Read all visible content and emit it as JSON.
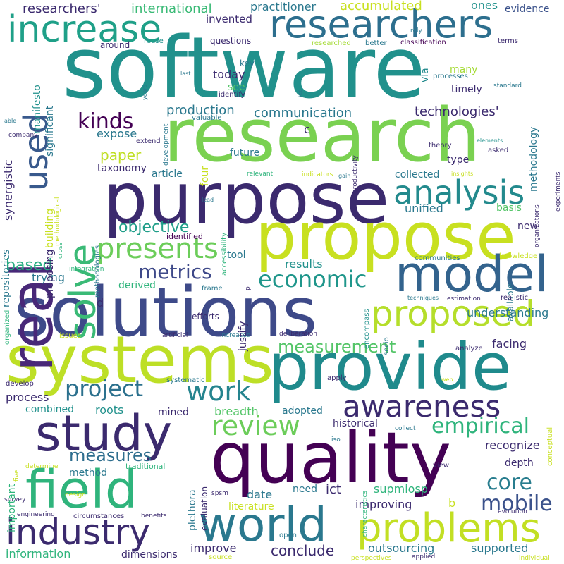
{
  "words": [
    {
      "text": "software",
      "color": "#21918c"
    },
    {
      "text": "research",
      "color": "#7ad151"
    },
    {
      "text": "purpose",
      "color": "#3b2a6e"
    },
    {
      "text": "propose",
      "color": "#c8e020"
    },
    {
      "text": "solutions",
      "color": "#3e4a89"
    },
    {
      "text": "systems",
      "color": "#bddf26"
    },
    {
      "text": "provide",
      "color": "#1f8a8c"
    },
    {
      "text": "quality",
      "color": "#440154"
    },
    {
      "text": "model",
      "color": "#33638d"
    },
    {
      "text": "study",
      "color": "#3b2a6e"
    },
    {
      "text": "field",
      "color": "#2fb47c"
    },
    {
      "text": "world",
      "color": "#2a788e"
    },
    {
      "text": "industry",
      "color": "#3b2a6e"
    },
    {
      "text": "problems",
      "color": "#c2df23"
    },
    {
      "text": "increase",
      "color": "#1fa088"
    },
    {
      "text": "researchers",
      "color": "#2d6f8e"
    },
    {
      "text": "real",
      "color": "#482878"
    },
    {
      "text": "solve",
      "color": "#3aba76"
    },
    {
      "text": "used",
      "color": "#38598c"
    },
    {
      "text": "analysis",
      "color": "#238a8d"
    },
    {
      "text": "presents",
      "color": "#6ccd5a"
    },
    {
      "text": "proposed",
      "color": "#b5de2b"
    },
    {
      "text": "awareness",
      "color": "#3b2a6e"
    },
    {
      "text": "review",
      "color": "#6ccd5a"
    },
    {
      "text": "work",
      "color": "#25848e"
    },
    {
      "text": "project",
      "color": "#2c718e"
    },
    {
      "text": "empirical",
      "color": "#2fb47c"
    },
    {
      "text": "core",
      "color": "#287d8e"
    },
    {
      "text": "mobile",
      "color": "#3b528b"
    },
    {
      "text": "economic",
      "color": "#1f968b"
    },
    {
      "text": "metrics",
      "color": "#3e4989"
    },
    {
      "text": "measures",
      "color": "#2e6e8e"
    },
    {
      "text": "kinds",
      "color": "#440154"
    },
    {
      "text": "measurement",
      "color": "#54c568"
    },
    {
      "text": "objective",
      "color": "#1f9e89"
    },
    {
      "text": "based",
      "color": "#27ad81"
    },
    {
      "text": "paper",
      "color": "#c0df25"
    },
    {
      "text": "technologies'",
      "color": "#3b2a6e"
    },
    {
      "text": "production",
      "color": "#2a788e"
    },
    {
      "text": "communication",
      "color": "#2a788e"
    },
    {
      "text": "international",
      "color": "#3aba76"
    },
    {
      "text": "accumulated",
      "color": "#c8e020"
    },
    {
      "text": "researchers'",
      "color": "#3b2a6e"
    },
    {
      "text": "practitioner",
      "color": "#2a788e"
    },
    {
      "text": "evidence",
      "color": "#3b528b"
    },
    {
      "text": "ones",
      "color": "#21918c"
    },
    {
      "text": "invented",
      "color": "#3b2a6e"
    },
    {
      "text": "questions",
      "color": "#3b2a6e"
    },
    {
      "text": "key",
      "color": "#2a788e"
    },
    {
      "text": "around",
      "color": "#3b2a6e"
    },
    {
      "text": "reuse",
      "color": "#21918c"
    },
    {
      "text": "researched",
      "color": "#a5db36"
    },
    {
      "text": "better",
      "color": "#2a788e"
    },
    {
      "text": "classification",
      "color": "#440154"
    },
    {
      "text": "terms",
      "color": "#3b2a6e"
    },
    {
      "text": "rely",
      "color": "#2a788e"
    },
    {
      "text": "via",
      "color": "#238a8d"
    },
    {
      "text": "many",
      "color": "#a5db36"
    },
    {
      "text": "processes",
      "color": "#2a788e"
    },
    {
      "text": "standard",
      "color": "#2a788e"
    },
    {
      "text": "timely",
      "color": "#3b2a6e"
    },
    {
      "text": "methodology",
      "color": "#2a788e"
    },
    {
      "text": "see",
      "color": "#54c568"
    },
    {
      "text": "identify",
      "color": "#3b2a6e"
    },
    {
      "text": "today",
      "color": "#3b2a6e"
    },
    {
      "text": "c",
      "color": "#3b2a6e"
    },
    {
      "text": "expose",
      "color": "#2a788e"
    },
    {
      "text": "extend",
      "color": "#3b2a6e"
    },
    {
      "text": "future",
      "color": "#2a788e"
    },
    {
      "text": "four",
      "color": "#c8e020"
    },
    {
      "text": "taxonomy",
      "color": "#3b2a6e"
    },
    {
      "text": "article",
      "color": "#2a788e"
    },
    {
      "text": "collected",
      "color": "#2a788e"
    },
    {
      "text": "type",
      "color": "#3b2a6e"
    },
    {
      "text": "unified",
      "color": "#2a788e"
    },
    {
      "text": "basis",
      "color": "#54c568"
    },
    {
      "text": "theory",
      "color": "#3b2a6e"
    },
    {
      "text": "asked",
      "color": "#3b2a6e"
    },
    {
      "text": "elements",
      "color": "#21918c"
    },
    {
      "text": "insights",
      "color": "#c8e020"
    },
    {
      "text": "indicators",
      "color": "#c8e020"
    },
    {
      "text": "gain",
      "color": "#2a788e"
    },
    {
      "text": "relevant",
      "color": "#2fb47c"
    },
    {
      "text": "valuable",
      "color": "#2a788e"
    },
    {
      "text": "lead",
      "color": "#2a788e"
    },
    {
      "text": "company",
      "color": "#3b2a6e"
    },
    {
      "text": "able",
      "color": "#2a788e"
    },
    {
      "text": "last",
      "color": "#2a788e"
    },
    {
      "text": "years",
      "color": "#2a788e"
    },
    {
      "text": "iec",
      "color": "#2a788e"
    },
    {
      "text": "new",
      "color": "#3b2a6e"
    },
    {
      "text": "identified",
      "color": "#440154"
    },
    {
      "text": "tool",
      "color": "#2a788e"
    },
    {
      "text": "results",
      "color": "#21918c"
    },
    {
      "text": "trying",
      "color": "#2a788e"
    },
    {
      "text": "derived",
      "color": "#2fb47c"
    },
    {
      "text": "d",
      "color": "#3b2a6e"
    },
    {
      "text": "integration",
      "color": "#2fb47c"
    },
    {
      "text": "communities",
      "color": "#2a788e"
    },
    {
      "text": "knowledge",
      "color": "#c8e020"
    },
    {
      "text": "available",
      "color": "#2a788e"
    },
    {
      "text": "frame",
      "color": "#2a788e"
    },
    {
      "text": "efforts",
      "color": "#3b2a6e"
    },
    {
      "text": "artificial",
      "color": "#3b2a6e"
    },
    {
      "text": "increased",
      "color": "#2a788e"
    },
    {
      "text": "deliberation",
      "color": "#3b2a6e"
    },
    {
      "text": "techniques",
      "color": "#2a788e"
    },
    {
      "text": "estimation",
      "color": "#3b2a6e"
    },
    {
      "text": "realistic",
      "color": "#3b2a6e"
    },
    {
      "text": "encompass",
      "color": "#21918c"
    },
    {
      "text": "understanding",
      "color": "#2a788e"
    },
    {
      "text": "facing",
      "color": "#3b2a6e"
    },
    {
      "text": "analyze",
      "color": "#3b2a6e"
    },
    {
      "text": "issues",
      "color": "#c8e020"
    },
    {
      "text": "develop",
      "color": "#3b2a6e"
    },
    {
      "text": "systematic",
      "color": "#2a788e"
    },
    {
      "text": "apply",
      "color": "#3b2a6e"
    },
    {
      "text": "web",
      "color": "#c8e020"
    },
    {
      "text": "combined",
      "color": "#21918c"
    },
    {
      "text": "roots",
      "color": "#21918c"
    },
    {
      "text": "mined",
      "color": "#3b2a6e"
    },
    {
      "text": "breadth",
      "color": "#54c568"
    },
    {
      "text": "adopted",
      "color": "#2a788e"
    },
    {
      "text": "process",
      "color": "#3b2a6e"
    },
    {
      "text": "historical",
      "color": "#3b2a6e"
    },
    {
      "text": "plethora",
      "color": "#2a788e"
    },
    {
      "text": "recognize",
      "color": "#3b2a6e"
    },
    {
      "text": "depth",
      "color": "#3b2a6e"
    },
    {
      "text": "collect",
      "color": "#2a788e"
    },
    {
      "text": "method",
      "color": "#2a788e"
    },
    {
      "text": "traditional",
      "color": "#2fb47c"
    },
    {
      "text": "evaluation",
      "color": "#3b2a6e"
    },
    {
      "text": "date",
      "color": "#2a788e"
    },
    {
      "text": "ict",
      "color": "#3b2a6e"
    },
    {
      "text": "need",
      "color": "#2a788e"
    },
    {
      "text": "supmiosp",
      "color": "#2fb47c"
    },
    {
      "text": "b",
      "color": "#c8e020"
    },
    {
      "text": "improving",
      "color": "#3b2a6e"
    },
    {
      "text": "literature",
      "color": "#c8e020"
    },
    {
      "text": "determine",
      "color": "#c8e020"
    },
    {
      "text": "survey",
      "color": "#3b2a6e"
    },
    {
      "text": "engineering",
      "color": "#3b2a6e"
    },
    {
      "text": "circumstances",
      "color": "#3b2a6e"
    },
    {
      "text": "benefits",
      "color": "#3b2a6e"
    },
    {
      "text": "design",
      "color": "#c8e020"
    },
    {
      "text": "information",
      "color": "#2fb47c"
    },
    {
      "text": "dimensions",
      "color": "#3b2a6e"
    },
    {
      "text": "improve",
      "color": "#3b2a6e"
    },
    {
      "text": "conclude",
      "color": "#3b2a6e"
    },
    {
      "text": "outsourcing",
      "color": "#2a788e"
    },
    {
      "text": "supported",
      "color": "#2a788e"
    },
    {
      "text": "source",
      "color": "#c8e020"
    },
    {
      "text": "open",
      "color": "#2a788e"
    },
    {
      "text": "perspectives",
      "color": "#c8e020"
    },
    {
      "text": "applied",
      "color": "#3b2a6e"
    },
    {
      "text": "individual",
      "color": "#c8e020"
    },
    {
      "text": "evolution",
      "color": "#3b2a6e"
    },
    {
      "text": "view",
      "color": "#3b2a6e"
    },
    {
      "text": "spsm",
      "color": "#3b2a6e"
    },
    {
      "text": "iso",
      "color": "#2a788e"
    },
    {
      "text": "important",
      "color": "#2fb47c"
    },
    {
      "text": "five",
      "color": "#c8e020"
    },
    {
      "text": "synergistic",
      "color": "#3b2a6e"
    },
    {
      "text": "manifesto",
      "color": "#21918c"
    },
    {
      "text": "significant",
      "color": "#2a788e"
    },
    {
      "text": "development",
      "color": "#2a788e"
    },
    {
      "text": "methodological",
      "color": "#c8e020"
    },
    {
      "text": "building",
      "color": "#c8e020"
    },
    {
      "text": "proposing",
      "color": "#3b2a6e"
    },
    {
      "text": "repositories",
      "color": "#2a788e"
    },
    {
      "text": "cross",
      "color": "#2fb47c"
    },
    {
      "text": "methodologies",
      "color": "#2a788e"
    },
    {
      "text": "organized",
      "color": "#2fb47c"
    },
    {
      "text": "productivity",
      "color": "#3b2a6e"
    },
    {
      "text": "accessibility",
      "color": "#2fb47c"
    },
    {
      "text": "justify",
      "color": "#3b2a6e"
    },
    {
      "text": "p",
      "color": "#3b2a6e"
    },
    {
      "text": "socio",
      "color": "#2a788e"
    },
    {
      "text": "conceptual",
      "color": "#c8e020"
    },
    {
      "text": "characteristics",
      "color": "#2fb47c"
    },
    {
      "text": "organizations",
      "color": "#3b2a6e"
    },
    {
      "text": "experiments",
      "color": "#3b2a6e"
    }
  ]
}
